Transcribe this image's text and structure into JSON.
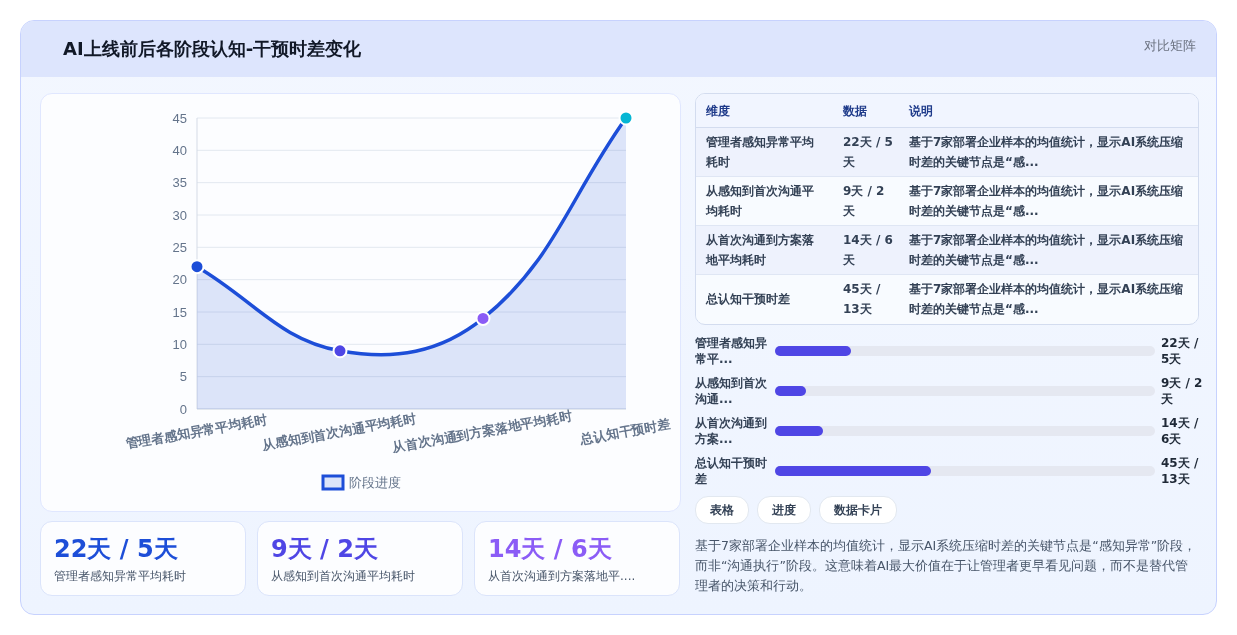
{
  "chart_data": [
    {
      "type": "area",
      "title": "AI上线前后各阶段认知-干预时差变化",
      "annotations": [
        "对比矩阵"
      ],
      "categories": [
        "管理者感知异常平均耗时",
        "从感知到首次沟通平均耗时",
        "从首次沟通到方案落地平均耗时",
        "总认知干预时差"
      ],
      "colors": [
        "#1d4ed8",
        "#4f46e5",
        "#8b5cf6",
        "#06b6d4"
      ],
      "series": [
        {
          "name": "阶段进度",
          "color": "#1d4ed8",
          "values": [
            22,
            9,
            14,
            45
          ]
        }
      ],
      "ylim": [
        0,
        45
      ],
      "yticks": [
        0,
        5,
        10,
        15,
        20,
        25,
        30,
        35,
        40,
        45
      ],
      "grid": "y",
      "legend": "bottom",
      "marker": "circle"
    },
    {
      "type": "other",
      "categories": [
        "管理者感知异常平均耗时",
        "从感知到首次沟通平均耗时",
        "从首次沟通到方案落地平...."
      ],
      "annotations": [
        "22天 / 5天",
        "9天 / 2天",
        "14天 / 6天"
      ]
    },
    {
      "type": "other",
      "categories": [
        "维度",
        "数据",
        "说明"
      ],
      "annotations": [
        "管理者感知异常平均耗时",
        "22天 / 5天",
        "基于7家部署企业样本的均值统计，显示AI系统压缩时差的关键节点是“感...",
        "从感知到首次沟通平均耗时",
        "9天 / 2天",
        "基于7家部署企业样本的均值统计，显示AI系统压缩时差的关键节点是“感...",
        "从首次沟通到方案落地平均耗时",
        "14天 / 6天",
        "基于7家部署企业样本的均值统计，显示AI系统压缩时差的关键节点是“感...",
        "总认知干预时差",
        "45天 / 13天",
        "基于7家部署企业样本的均值统计，显示AI系统压缩时差的关键节点是“感..."
      ]
    },
    {
      "type": "bar",
      "orientation": "horizontal",
      "categories": [
        "管理者感知异常平...",
        "从感知到首次沟通...",
        "从首次沟通到方案...",
        "总认知干预时差"
      ],
      "values": [
        22,
        9,
        14,
        45
      ],
      "value_labels": [
        "22天 / 5天",
        "9天 / 2天",
        "14天 / 6天",
        "45天 / 13天"
      ],
      "color": "#4f46e5"
    },
    {
      "type": "other",
      "categories": [
        "表格",
        "进度",
        "数据卡片"
      ],
      "annotations": [
        "基于7家部署企业样本的均值统计，显示AI系统压缩时差的关键节点是“感知异常”阶段，而非“沟通执行”阶段。这意味着AI最大价值在于让管理者更早看见问题，而不是替代管理者的决策和行动。"
      ]
    }
  ]
}
